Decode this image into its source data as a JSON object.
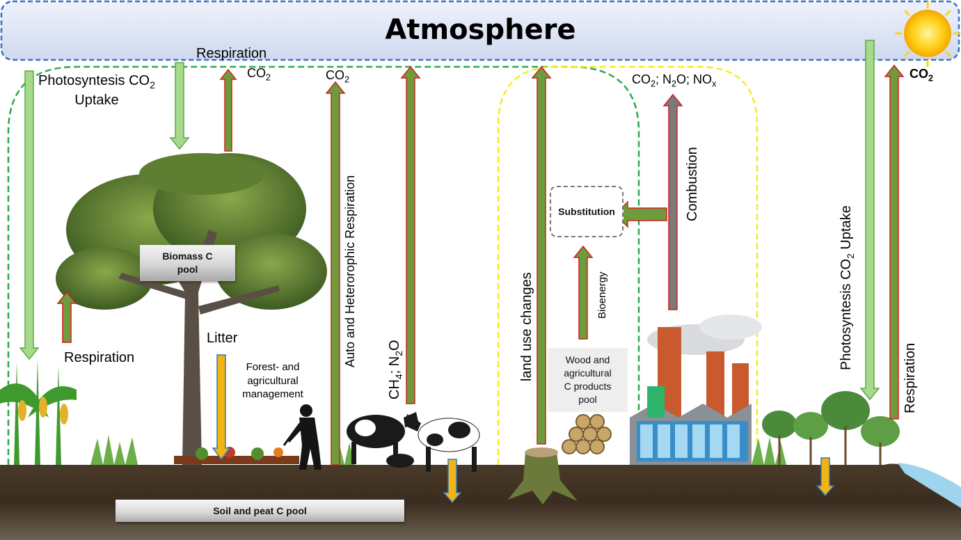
{
  "atmosphere": {
    "title": "Atmosphere"
  },
  "labels": {
    "photosynthesis_left_line1": "Photosyntesis CO",
    "photosynthesis_left_sub": "2",
    "photosynthesis_left_line2": "Uptake",
    "respiration_top": "Respiration",
    "co2_a_main": "CO",
    "co2_a_sub": "2",
    "co2_b_main": "CO",
    "co2_b_sub": "2",
    "co2_right_main": "CO",
    "co2_right_sub": "2",
    "emissions": {
      "a": "CO",
      "a_sub": "2",
      "b": "; N",
      "b_sub": "2",
      "c": "O; NO",
      "c_sub": "x"
    },
    "respiration_left": "Respiration",
    "litter": "Litter",
    "forest_management": "Forest- and\nagricultural\nmanagement",
    "auto_hetero": "Auto and Heterorophic Respiration",
    "ch4_n2o": {
      "a": "CH",
      "a_sub": "4",
      "b": "; N",
      "b_sub": "2",
      "c": "O"
    },
    "land_use": "land use changes",
    "bioenergy": "Bioenergy",
    "combustion": "Combustion",
    "photosynthesis_right": {
      "a": "Photosyntesis CO",
      "a_sub": "2",
      "b": " Uptake"
    },
    "respiration_right": "Respiration"
  },
  "pools": {
    "biomass": "Biomass C\npool",
    "soil": "Soil and peat C pool",
    "substitution": "Substitution",
    "wood_products": "Wood and\nagricultural\nC products\npool"
  },
  "colors": {
    "uptake_fill": "#a6d98c",
    "uptake_stroke": "#5aa844",
    "emission_fill": "#6e9c3c",
    "emission_stroke": "#d21f1f",
    "soil_fill": "#f2b413",
    "soil_stroke": "#2f78c4",
    "combustion_fill": "#7a7a7a",
    "green_dash": "#2aa84a",
    "yellow_dash": "#f2ee1c",
    "atmosphere_fill": "#dbe3f4",
    "atmosphere_stroke": "#3d6fc4"
  }
}
